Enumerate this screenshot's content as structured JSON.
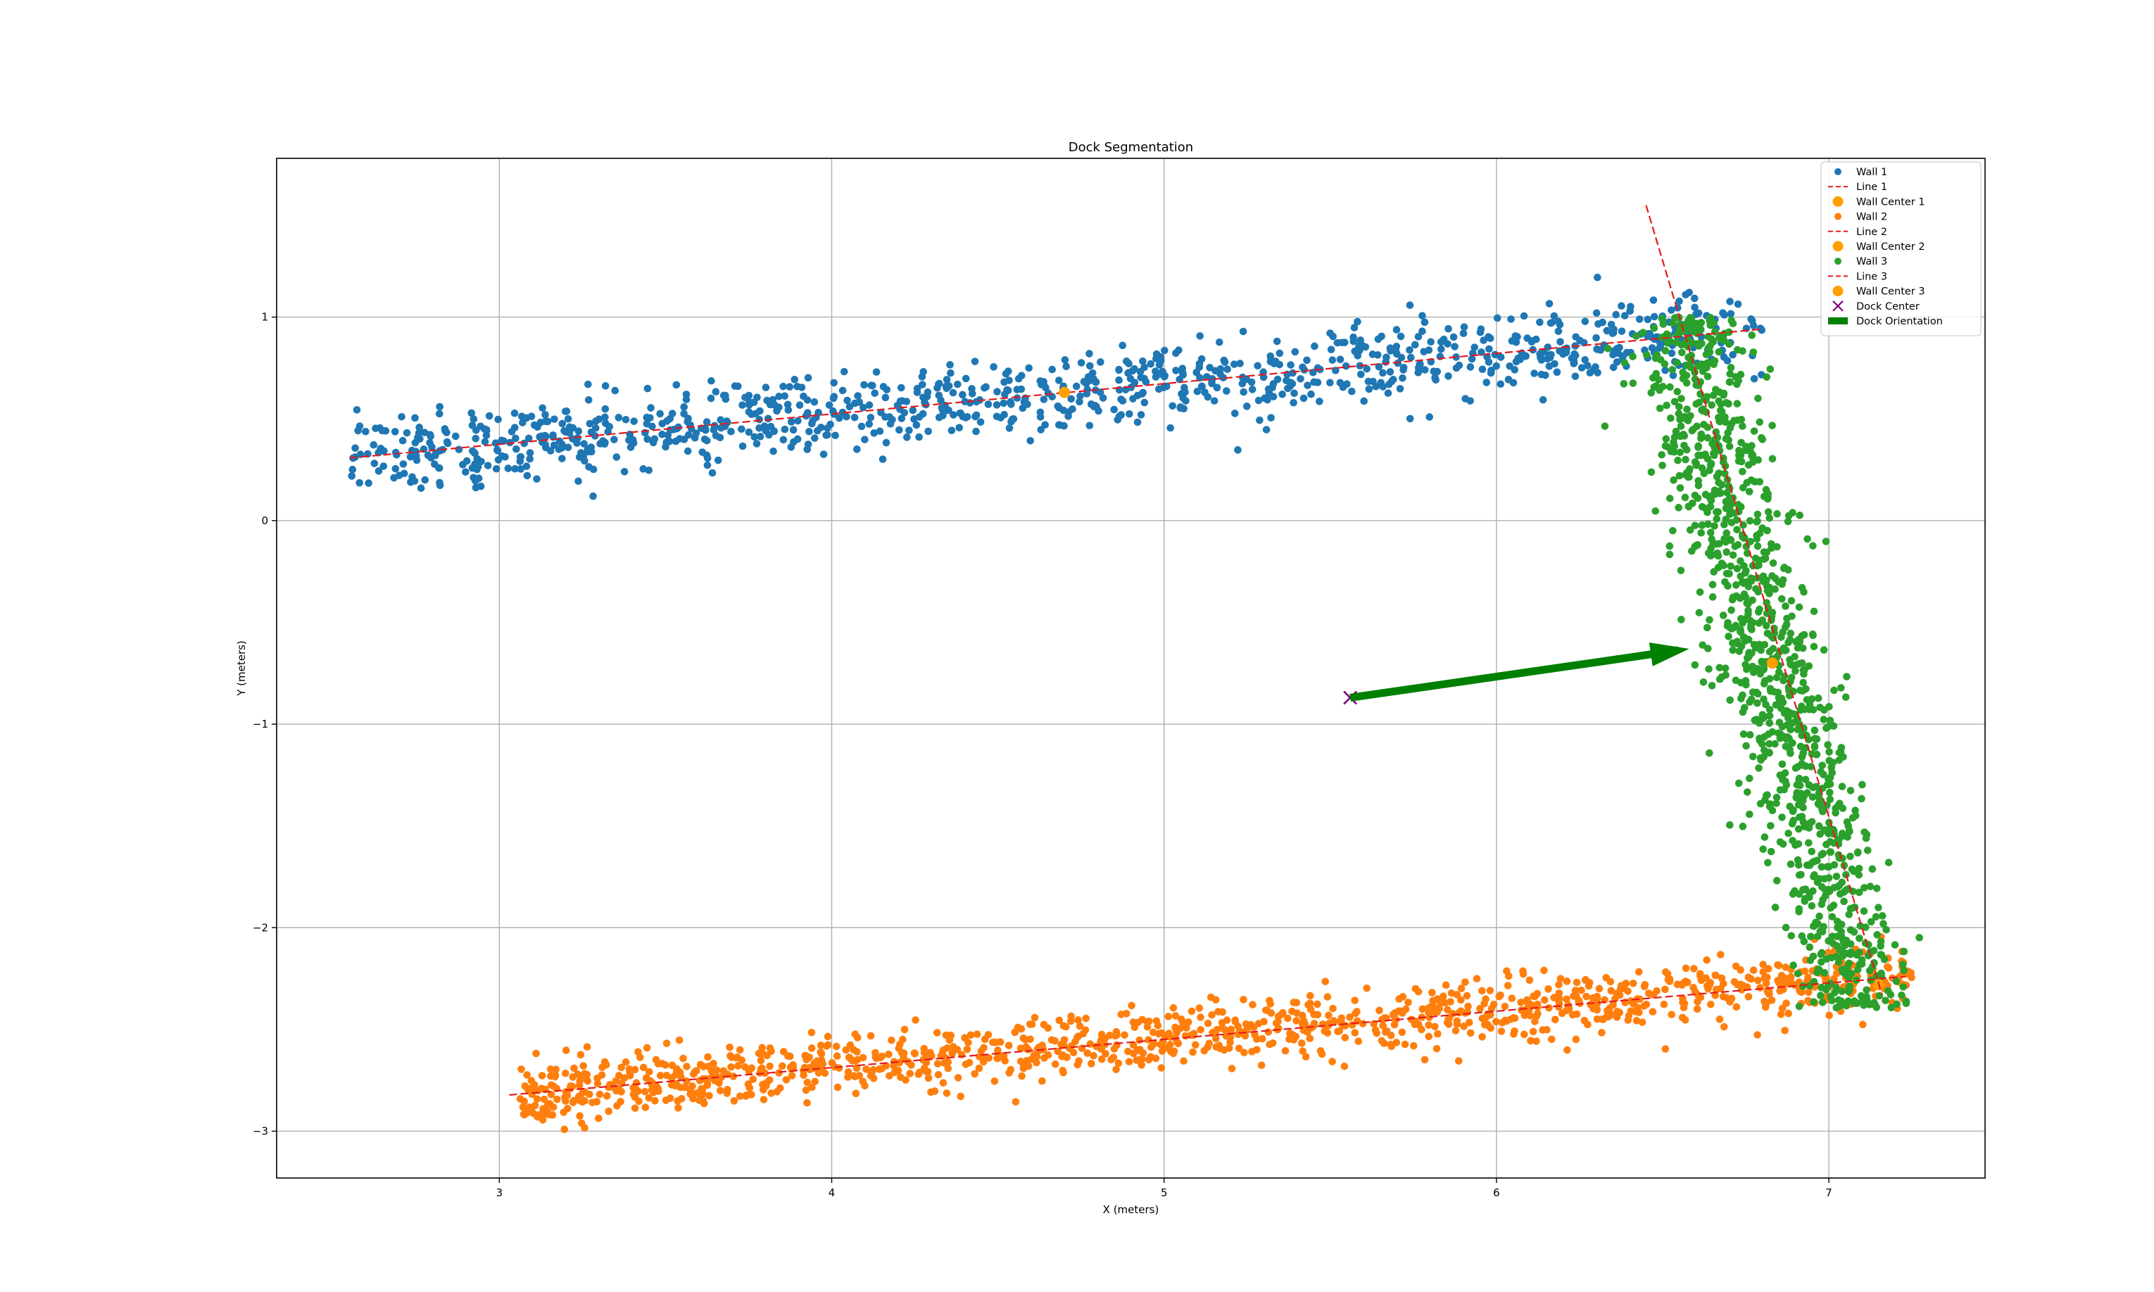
{
  "chart_data": {
    "type": "scatter",
    "title": "Dock Segmentation",
    "xlabel": "X (meters)",
    "ylabel": "Y (meters)",
    "xlim": [
      2.33,
      7.47
    ],
    "ylim": [
      -3.23,
      1.78
    ],
    "xticks": [
      3,
      4,
      5,
      6,
      7
    ],
    "yticks": [
      -3,
      -2,
      -1,
      0,
      1
    ],
    "xtick_labels": [
      "3",
      "4",
      "5",
      "6",
      "7"
    ],
    "ytick_labels": [
      "−3",
      "−2",
      "−1",
      "0",
      "1"
    ],
    "grid": true,
    "legend_position": "top-right",
    "series": [
      {
        "name": "Wall 1",
        "kind": "points",
        "color": "#1f77b4",
        "x_range": [
          2.55,
          6.8
        ],
        "line": [
          0.1489,
          -0.0717
        ],
        "noise": 0.095,
        "count": 1050,
        "seed": 11
      },
      {
        "name": "Line 1",
        "kind": "line",
        "color": "#e41a1c",
        "x": [
          2.55,
          6.8
        ],
        "y": [
          0.308,
          0.941
        ]
      },
      {
        "name": "Wall Center 1",
        "kind": "center",
        "color": "#ff9f00",
        "x": [
          4.7
        ],
        "y": [
          0.63
        ]
      },
      {
        "name": "Wall 2",
        "kind": "points",
        "color": "#ff7f0e",
        "x_range": [
          3.05,
          7.25
        ],
        "line": [
          0.1387,
          -3.2427
        ],
        "noise": 0.075,
        "count": 1200,
        "seed": 23
      },
      {
        "name": "Line 2",
        "kind": "line",
        "color": "#e41a1c",
        "x": [
          3.03,
          7.23
        ],
        "y": [
          -2.822,
          -2.24
        ]
      },
      {
        "name": "Wall Center 2",
        "kind": "center",
        "color": "#ff9f00",
        "x": [
          7.15
        ],
        "y": [
          -2.28
        ]
      },
      {
        "name": "Wall 3",
        "kind": "points",
        "color": "#2ca02c",
        "y_range": [
          -2.4,
          1.0
        ],
        "line_y": [
          -0.1555,
          6.7154
        ],
        "noise": 0.085,
        "count": 1150,
        "seed": 37
      },
      {
        "name": "Line 3",
        "kind": "line",
        "color": "#e41a1c",
        "x": [
          6.45,
          7.16
        ],
        "y": [
          1.55,
          -2.33
        ]
      },
      {
        "name": "Wall Center 3",
        "kind": "center",
        "color": "#ff9f00",
        "x": [
          6.83
        ],
        "y": [
          -0.7
        ]
      },
      {
        "name": "Dock Center",
        "kind": "x",
        "color": "#800080",
        "x": [
          5.56
        ],
        "y": [
          -0.87
        ]
      },
      {
        "name": "Dock Orientation",
        "kind": "arrow",
        "color": "#008000",
        "x": [
          5.56,
          6.58
        ],
        "y": [
          -0.87,
          -0.63
        ]
      }
    ]
  }
}
